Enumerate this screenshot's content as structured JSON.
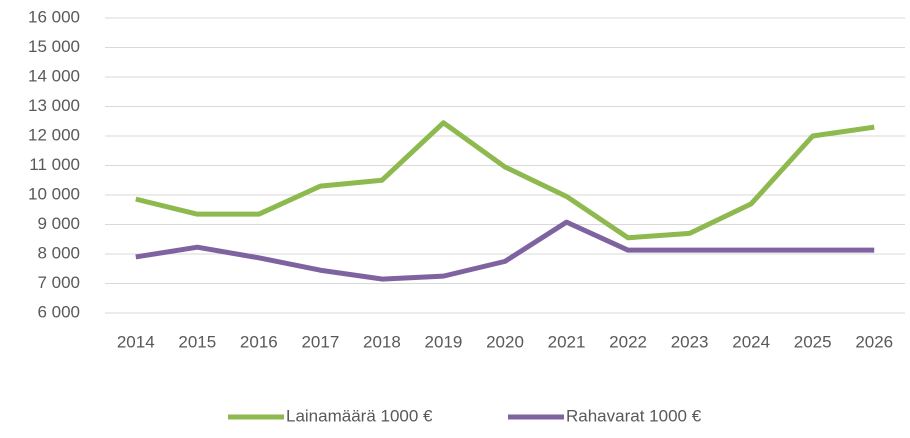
{
  "chart_data": {
    "type": "line",
    "categories": [
      "2014",
      "2015",
      "2016",
      "2017",
      "2018",
      "2019",
      "2020",
      "2021",
      "2022",
      "2023",
      "2024",
      "2025",
      "2026"
    ],
    "series": [
      {
        "name": "Lainamäärä 1000 €",
        "color": "#8db94f",
        "values": [
          9860,
          9350,
          9350,
          10300,
          10500,
          12450,
          10950,
          9950,
          8550,
          8700,
          9700,
          12000,
          12300
        ]
      },
      {
        "name": "Rahavarat 1000 €",
        "color": "#7f63a1",
        "values": [
          7900,
          8230,
          7870,
          7450,
          7150,
          7250,
          7750,
          9080,
          8130,
          8130,
          8130,
          8130,
          8130
        ]
      }
    ],
    "ylim": [
      6000,
      16000
    ],
    "yticks": [
      {
        "value": 6000,
        "label": "6 000"
      },
      {
        "value": 7000,
        "label": "7 000"
      },
      {
        "value": 8000,
        "label": "8 000"
      },
      {
        "value": 9000,
        "label": "9 000"
      },
      {
        "value": 10000,
        "label": "10 000"
      },
      {
        "value": 11000,
        "label": "11 000"
      },
      {
        "value": 12000,
        "label": "12 000"
      },
      {
        "value": 13000,
        "label": "13 000"
      },
      {
        "value": 14000,
        "label": "14 000"
      },
      {
        "value": 15000,
        "label": "15 000"
      },
      {
        "value": 16000,
        "label": "16 000"
      }
    ],
    "grid": true,
    "legend": "bottom"
  }
}
